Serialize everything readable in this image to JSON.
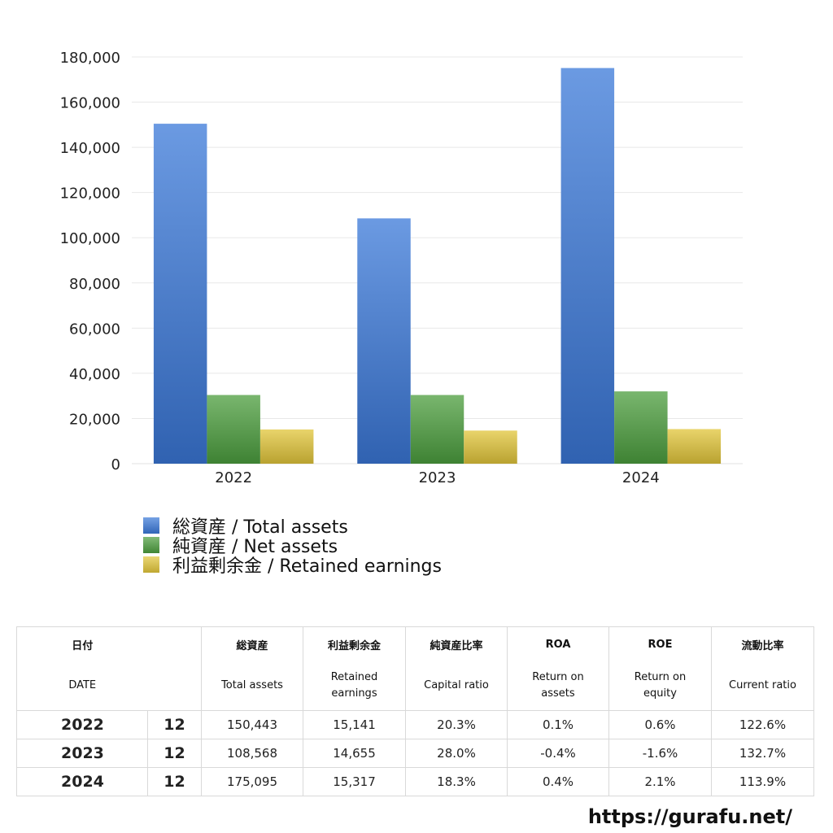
{
  "chart_data": {
    "type": "bar",
    "categories": [
      "2022",
      "2023",
      "2024"
    ],
    "series": [
      {
        "name": "総資産 / Total assets",
        "values": [
          150443,
          108568,
          175095
        ],
        "color": "#3a78d8"
      },
      {
        "name": "純資産 / Net assets",
        "values": [
          30400,
          30400,
          32000
        ],
        "color": "#4c9e3e"
      },
      {
        "name": "利益剰余金 / Retained earnings",
        "values": [
          15141,
          14655,
          15317
        ],
        "color": "#e2c63a"
      }
    ],
    "ylim": [
      0,
      180000
    ],
    "yticks": [
      "0",
      "20,000",
      "40,000",
      "60,000",
      "80,000",
      "100,000",
      "120,000",
      "140,000",
      "160,000",
      "180,000"
    ],
    "ytick_values": [
      0,
      20000,
      40000,
      60000,
      80000,
      100000,
      120000,
      140000,
      160000,
      180000
    ],
    "grid": true,
    "legend_position": "bottom-left"
  },
  "table": {
    "header_jp": [
      "日付",
      "",
      "総資産",
      "利益剰余金",
      "純資産比率",
      "ROA",
      "ROE",
      "流動比率"
    ],
    "header_en": [
      "DATE",
      "",
      "Total assets",
      "Retained earnings",
      "Capital ratio",
      "Return on assets",
      "Return on equity",
      "Current ratio"
    ],
    "rows": [
      {
        "year": "2022",
        "month": "12",
        "total_assets": "150,443",
        "retained": "15,141",
        "capital_ratio": "20.3%",
        "roa": "0.1%",
        "roe": "0.6%",
        "current_ratio": "122.6%"
      },
      {
        "year": "2023",
        "month": "12",
        "total_assets": "108,568",
        "retained": "14,655",
        "capital_ratio": "28.0%",
        "roa": "-0.4%",
        "roe": "-1.6%",
        "current_ratio": "132.7%"
      },
      {
        "year": "2024",
        "month": "12",
        "total_assets": "175,095",
        "retained": "15,317",
        "capital_ratio": "18.3%",
        "roa": "0.4%",
        "roe": "2.1%",
        "current_ratio": "113.9%"
      }
    ],
    "negative_color": "#d9452a"
  },
  "footer": {
    "url": "https://gurafu.net/"
  }
}
